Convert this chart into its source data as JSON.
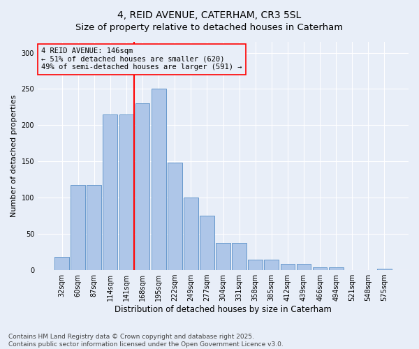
{
  "title": "4, REID AVENUE, CATERHAM, CR3 5SL",
  "subtitle": "Size of property relative to detached houses in Caterham",
  "xlabel": "Distribution of detached houses by size in Caterham",
  "ylabel": "Number of detached properties",
  "bar_labels": [
    "32sqm",
    "60sqm",
    "87sqm",
    "114sqm",
    "141sqm",
    "168sqm",
    "195sqm",
    "222sqm",
    "249sqm",
    "277sqm",
    "304sqm",
    "331sqm",
    "358sqm",
    "385sqm",
    "412sqm",
    "439sqm",
    "466sqm",
    "494sqm",
    "521sqm",
    "548sqm",
    "575sqm"
  ],
  "bar_values": [
    18,
    118,
    118,
    215,
    215,
    230,
    250,
    148,
    100,
    75,
    38,
    38,
    15,
    15,
    9,
    9,
    4,
    4,
    0,
    0,
    2
  ],
  "bar_color": "#aec6e8",
  "bar_edge_color": "#6699cc",
  "background_color": "#e8eef8",
  "grid_color": "#ffffff",
  "annotation_text": "4 REID AVENUE: 146sqm\n← 51% of detached houses are smaller (620)\n49% of semi-detached houses are larger (591) →",
  "vline_index": 4.5,
  "vline_color": "red",
  "annotation_box_color": "red",
  "ylim": [
    0,
    315
  ],
  "yticks": [
    0,
    50,
    100,
    150,
    200,
    250,
    300
  ],
  "footer": "Contains HM Land Registry data © Crown copyright and database right 2025.\nContains public sector information licensed under the Open Government Licence v3.0.",
  "title_fontsize": 10,
  "subtitle_fontsize": 9.5,
  "xlabel_fontsize": 8.5,
  "ylabel_fontsize": 8,
  "tick_fontsize": 7,
  "footer_fontsize": 6.5,
  "annotation_fontsize": 7.5
}
